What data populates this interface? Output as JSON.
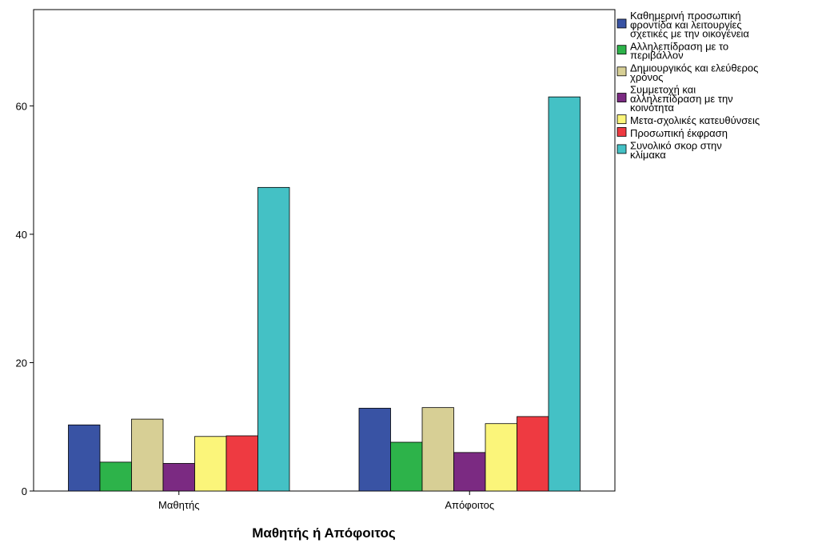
{
  "chart_data": {
    "type": "bar",
    "xlabel": "Μαθητής ή Απόφοιτος",
    "ylabel": "",
    "ylim": [
      0,
      75
    ],
    "yticks": [
      0,
      20,
      40,
      60
    ],
    "grid": false,
    "legend_position": "right",
    "categories": [
      "Μαθητής",
      "Απόφοιτος"
    ],
    "series": [
      {
        "name": "Καθημερινή προσωπική φροντίδα και λειτουργίες σχετικές με την οικογένεια",
        "legend_lines": [
          "Καθημερινή προσωπική",
          "φροντίδα και λειτουργίες",
          "σχετικές με την οικογένεια"
        ],
        "color": "#3953a4",
        "values": [
          10.3,
          12.9
        ]
      },
      {
        "name": "Αλληλεπίδραση με το περιβάλλον",
        "legend_lines": [
          "Αλληλεπίδραση με το",
          "περιβάλλον"
        ],
        "color": "#2db34a",
        "values": [
          4.5,
          7.6
        ]
      },
      {
        "name": "Δημιουργικός και ελεύθερος χρόνος",
        "legend_lines": [
          "Δημιουργικός και ελεύθερος",
          "χρόνος"
        ],
        "color": "#d7cf95",
        "values": [
          11.2,
          13.0
        ]
      },
      {
        "name": "Συμμετοχή και αλληλεπίδραση με την κοινότητα",
        "legend_lines": [
          "Συμμετοχή και",
          "αλληλεπίδραση με την",
          "κοινότητα"
        ],
        "color": "#7b2a82",
        "values": [
          4.3,
          6.0
        ]
      },
      {
        "name": "Μετα-σχολικές κατευθύνσεις",
        "legend_lines": [
          "Μετα-σχολικές κατευθύνσεις"
        ],
        "color": "#fbf57a",
        "values": [
          8.5,
          10.5
        ]
      },
      {
        "name": "Προσωπική έκφραση",
        "legend_lines": [
          "Προσωπική έκφραση"
        ],
        "color": "#ee3a41",
        "values": [
          8.6,
          11.6
        ]
      },
      {
        "name": "Συνολικό σκορ στην κλίμακα",
        "legend_lines": [
          "Συνολικό σκορ στην",
          "κλίμακα"
        ],
        "color": "#44c1c5",
        "values": [
          47.3,
          61.4
        ]
      }
    ]
  }
}
